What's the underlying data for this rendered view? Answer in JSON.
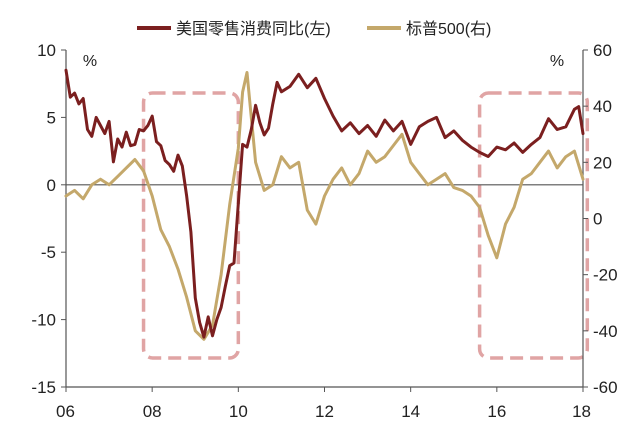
{
  "chart_data": {
    "type": "line",
    "legend": {
      "placement": "top",
      "entries": [
        "美国零售消费同比(左)",
        "标普500(右)"
      ]
    },
    "y_left": {
      "unit": "%",
      "ylim": [
        -15,
        10
      ],
      "ticks": [
        "10",
        "5",
        "0",
        "-5",
        "-10",
        "-15"
      ]
    },
    "y_right": {
      "unit": "%",
      "ylim": [
        -60,
        60
      ],
      "ticks": [
        "60",
        "40",
        "20",
        "0",
        "-20",
        "-40",
        "-60"
      ]
    },
    "x": {
      "range": [
        2006,
        2018
      ],
      "ticks": [
        "06",
        "08",
        "10",
        "12",
        "14",
        "16",
        "18"
      ]
    },
    "grid": false,
    "series": [
      {
        "name": "美国零售消费同比(左)",
        "axis": "left",
        "color": "#7b1f1f",
        "x": [
          2006.0,
          2006.1,
          2006.2,
          2006.3,
          2006.4,
          2006.5,
          2006.6,
          2006.7,
          2006.8,
          2006.9,
          2007.0,
          2007.1,
          2007.2,
          2007.3,
          2007.4,
          2007.5,
          2007.6,
          2007.7,
          2007.8,
          2007.9,
          2008.0,
          2008.1,
          2008.2,
          2008.3,
          2008.4,
          2008.5,
          2008.6,
          2008.7,
          2008.8,
          2008.9,
          2009.0,
          2009.1,
          2009.2,
          2009.3,
          2009.4,
          2009.5,
          2009.6,
          2009.7,
          2009.8,
          2009.9,
          2010.0,
          2010.1,
          2010.2,
          2010.3,
          2010.4,
          2010.5,
          2010.6,
          2010.7,
          2010.8,
          2010.9,
          2011.0,
          2011.2,
          2011.4,
          2011.6,
          2011.8,
          2012.0,
          2012.2,
          2012.4,
          2012.6,
          2012.8,
          2013.0,
          2013.2,
          2013.4,
          2013.6,
          2013.8,
          2014.0,
          2014.2,
          2014.4,
          2014.6,
          2014.8,
          2015.0,
          2015.2,
          2015.4,
          2015.6,
          2015.8,
          2016.0,
          2016.2,
          2016.4,
          2016.6,
          2016.8,
          2017.0,
          2017.2,
          2017.4,
          2017.6,
          2017.8,
          2017.9,
          2018.0
        ],
        "values": [
          8.5,
          6.5,
          6.8,
          6.0,
          6.4,
          4.1,
          3.6,
          5.0,
          4.4,
          3.8,
          4.7,
          1.7,
          3.4,
          2.8,
          3.9,
          2.9,
          3.0,
          4.1,
          4.0,
          4.4,
          5.1,
          3.2,
          2.9,
          1.8,
          1.5,
          1.0,
          2.2,
          1.4,
          -0.8,
          -3.5,
          -8.4,
          -10.2,
          -11.3,
          -9.8,
          -11.2,
          -10.0,
          -9.1,
          -7.5,
          -6.0,
          -5.8,
          -1.4,
          3.0,
          2.8,
          4.1,
          5.9,
          4.6,
          3.7,
          4.2,
          6.0,
          7.6,
          6.9,
          7.3,
          8.2,
          7.2,
          7.9,
          6.4,
          5.1,
          4.0,
          4.6,
          3.8,
          4.4,
          3.6,
          4.8,
          4.0,
          4.7,
          3.0,
          4.3,
          4.7,
          5.0,
          3.5,
          4.0,
          3.3,
          2.8,
          2.4,
          2.1,
          2.8,
          2.6,
          3.1,
          2.4,
          3.0,
          3.5,
          4.9,
          4.1,
          4.3,
          5.6,
          5.8,
          3.8
        ]
      },
      {
        "name": "标普500(右)",
        "axis": "right",
        "color": "#c4a86b",
        "x": [
          2006.0,
          2006.2,
          2006.4,
          2006.6,
          2006.8,
          2007.0,
          2007.2,
          2007.4,
          2007.6,
          2007.8,
          2008.0,
          2008.2,
          2008.4,
          2008.6,
          2008.8,
          2009.0,
          2009.2,
          2009.4,
          2009.6,
          2009.8,
          2010.0,
          2010.1,
          2010.2,
          2010.4,
          2010.6,
          2010.8,
          2011.0,
          2011.2,
          2011.4,
          2011.6,
          2011.8,
          2012.0,
          2012.2,
          2012.4,
          2012.6,
          2012.8,
          2013.0,
          2013.2,
          2013.4,
          2013.6,
          2013.8,
          2014.0,
          2014.2,
          2014.4,
          2014.6,
          2014.8,
          2015.0,
          2015.2,
          2015.4,
          2015.6,
          2015.8,
          2016.0,
          2016.2,
          2016.4,
          2016.6,
          2016.8,
          2017.0,
          2017.2,
          2017.4,
          2017.6,
          2017.8,
          2018.0
        ],
        "values": [
          8,
          10,
          7,
          12,
          14,
          12,
          15,
          18,
          21,
          17,
          8,
          -4,
          -10,
          -18,
          -28,
          -40,
          -43,
          -38,
          -20,
          5,
          25,
          45,
          52,
          20,
          10,
          12,
          22,
          18,
          20,
          3,
          -2,
          8,
          14,
          18,
          12,
          16,
          24,
          20,
          22,
          26,
          30,
          20,
          16,
          12,
          14,
          16,
          11,
          10,
          8,
          4,
          -6,
          -14,
          -2,
          4,
          14,
          16,
          20,
          24,
          18,
          22,
          24,
          14
        ]
      }
    ]
  },
  "highlights": [
    {
      "x_from": 2007.8,
      "x_to": 2010.0,
      "color": "#e0a4a4"
    },
    {
      "x_from": 2015.6,
      "x_to": 2018.1,
      "color": "#e0a4a4"
    }
  ]
}
